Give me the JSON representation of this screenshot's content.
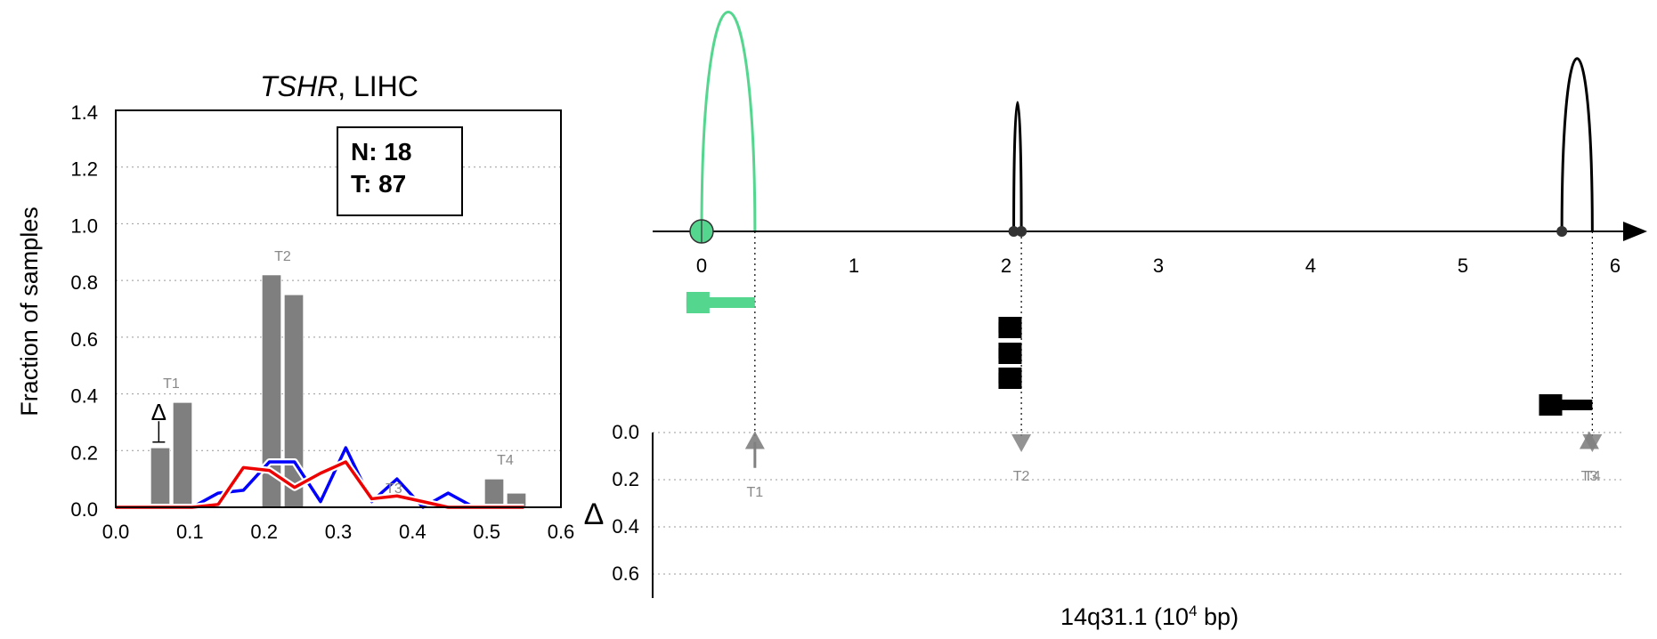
{
  "chart_data": [
    {
      "type": "bar",
      "title_gene": "TSHR",
      "title_rest": ", LIHC",
      "xlabel": "",
      "ylabel": "Fraction of samples",
      "xlim": [
        0.0,
        0.6
      ],
      "ylim": [
        0.0,
        1.4
      ],
      "xticks": [
        "0.0",
        "0.1",
        "0.2",
        "0.3",
        "0.4",
        "0.5",
        "0.6"
      ],
      "yticks": [
        "0.0",
        "0.2",
        "0.4",
        "0.6",
        "0.8",
        "1.0",
        "1.2",
        "1.4"
      ],
      "grid": true,
      "legend": {
        "n_label": "N: 18",
        "t_label": "T: 87",
        "placement": "top-right"
      },
      "bars": [
        {
          "x": 0.06,
          "value": 0.21,
          "group": "T1"
        },
        {
          "x": 0.09,
          "value": 0.37,
          "group": "T1"
        },
        {
          "x": 0.21,
          "value": 0.82,
          "group": "T2"
        },
        {
          "x": 0.24,
          "value": 0.75,
          "group": "T2"
        },
        {
          "x": 0.51,
          "value": 0.1,
          "group": "T4"
        },
        {
          "x": 0.54,
          "value": 0.05,
          "group": "T4"
        }
      ],
      "group_labels": [
        {
          "label": "T1",
          "x": 0.075,
          "y": 0.42
        },
        {
          "label": "T2",
          "x": 0.225,
          "y": 0.87
        },
        {
          "label": "T3",
          "x": 0.375,
          "y": 0.05
        },
        {
          "label": "T4",
          "x": 0.525,
          "y": 0.15
        }
      ],
      "delta_marker": {
        "symbol": "Δ",
        "x": 0.058,
        "y": 0.31,
        "err_low": 0.23,
        "err_high": 0.37
      },
      "series": [
        {
          "color": "#0000ff",
          "style": "white-outlined",
          "x": [
            0.0,
            0.034,
            0.069,
            0.103,
            0.138,
            0.172,
            0.207,
            0.241,
            0.276,
            0.31,
            0.345,
            0.379,
            0.414,
            0.448,
            0.483,
            0.517,
            0.55
          ],
          "y": [
            0.0,
            0.0,
            0.0,
            0.0,
            0.05,
            0.06,
            0.16,
            0.16,
            0.02,
            0.21,
            0.02,
            0.1,
            0.0,
            0.05,
            0.0,
            0.0,
            0.0
          ]
        },
        {
          "color": "#ee0000",
          "style": "white-outlined",
          "x": [
            0.0,
            0.034,
            0.069,
            0.103,
            0.138,
            0.172,
            0.207,
            0.241,
            0.276,
            0.31,
            0.345,
            0.379,
            0.414,
            0.448,
            0.483,
            0.517,
            0.55
          ],
          "y": [
            0.0,
            0.0,
            0.0,
            0.0,
            0.01,
            0.14,
            0.13,
            0.07,
            0.12,
            0.16,
            0.03,
            0.04,
            0.02,
            0.0,
            0.0,
            0.0,
            0.0
          ]
        }
      ]
    },
    {
      "type": "line",
      "xlabel_main": "14q31.1 (10",
      "xlabel_sup": "4",
      "xlabel_end": " bp)",
      "xlim": [
        -0.35,
        6.2
      ],
      "xticks": [
        "0",
        "1",
        "2",
        "3",
        "4",
        "5",
        "6"
      ],
      "delta_axis_label": "Δ",
      "delta_ylim": [
        0.0,
        0.6
      ],
      "delta_yticks": [
        "0.0",
        "0.2",
        "0.4",
        "0.6"
      ],
      "arcs": [
        {
          "start": 0.0,
          "end": 0.35,
          "height": 0.85,
          "color": "#55d68f"
        },
        {
          "start": 2.05,
          "end": 2.1,
          "height": 0.5,
          "color": "#000000"
        },
        {
          "start": 5.65,
          "end": 5.85,
          "height": 0.67,
          "color": "#000000"
        }
      ],
      "nodes": [
        {
          "x": 0.0,
          "color": "#55d68f",
          "big": true
        },
        {
          "x": 2.05,
          "color": "#333333",
          "big": false
        },
        {
          "x": 2.1,
          "color": "#333333",
          "big": false
        },
        {
          "x": 5.65,
          "color": "#333333",
          "big": false
        }
      ],
      "transcripts": [
        {
          "start": -0.1,
          "end": 0.35,
          "row": 0,
          "color": "#55d68f"
        },
        {
          "start": 1.95,
          "end": 2.1,
          "row": 1,
          "color": "#000000"
        },
        {
          "start": 1.95,
          "end": 2.1,
          "row": 2,
          "color": "#000000"
        },
        {
          "start": 1.95,
          "end": 2.1,
          "row": 3,
          "color": "#000000"
        },
        {
          "start": 5.5,
          "end": 5.85,
          "row": 4,
          "color": "#000000"
        }
      ],
      "delta_markers": [
        {
          "x": 0.35,
          "direction": "up",
          "label": "T1",
          "value": 0.15
        },
        {
          "x": 2.1,
          "direction": "down",
          "label": "T2",
          "value": 0.05
        },
        {
          "x": 5.83,
          "direction": "up",
          "label": "T3",
          "value": 0.05
        },
        {
          "x": 5.85,
          "direction": "down",
          "label": "T4",
          "value": 0.05
        }
      ],
      "guides": [
        0.35,
        2.1,
        5.85
      ]
    }
  ]
}
